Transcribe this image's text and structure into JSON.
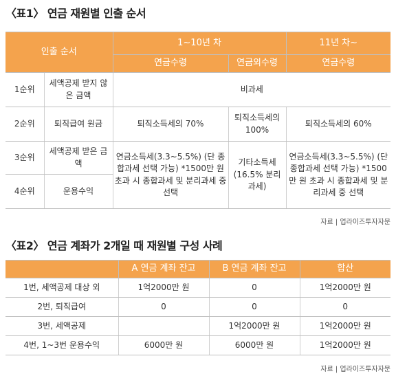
{
  "table1": {
    "title": "〈표1〉 연금 재원별 인출 순서",
    "header": {
      "order": "인출 순서",
      "period1": "1~10년 차",
      "period2": "11년 차~",
      "pension_receipt": "연금수령",
      "non_pension_receipt": "연금외수령",
      "pension_receipt2": "연금수령"
    },
    "rows": [
      {
        "rank": "1순위",
        "source": "세액공제 받지 않은 금액",
        "merged": "비과세"
      },
      {
        "rank": "2순위",
        "source": "퇴직급여 원금",
        "c1": "퇴직소득세의 70%",
        "c2": "퇴직소득세의 100%",
        "c3": "퇴직소득세의 60%"
      },
      {
        "rank": "3순위",
        "source": "세액공제 받은 금액",
        "c1": "연금소득세(3.3~5.5%) (단 종합과세 선택 가능) *1500만 원 초과 시 종합과세 및 분리과세 중 선택",
        "c2": "기타소득세 (16.5% 분리과세)",
        "c3": "연금소득세(3.3~5.5%) (단 종합과세 선택 가능) *1500만 원 초과 시 종합과세 및 분리과세 중 선택"
      },
      {
        "rank": "4순위",
        "source": "운용수익"
      }
    ],
    "source_note": "자료 | 업라이즈투자자문"
  },
  "table2": {
    "title": "〈표2〉 연금 계좌가 2개일 때 재원별 구성 사례",
    "header": [
      "",
      "A 연금 계좌 잔고",
      "B 연금 계좌 잔고",
      "합산"
    ],
    "rows": [
      [
        "1번, 세액공제 대상 외",
        "1억2000만 원",
        "0",
        "1억2000만 원"
      ],
      [
        "2번, 퇴직급여",
        "0",
        "0",
        "0"
      ],
      [
        "3번, 세액공제",
        "",
        "1억2000만 원",
        "1억2000만 원"
      ],
      [
        "4번, 1~3번 운용수익",
        "6000만 원",
        "6000만 원",
        "1억2000만 원"
      ]
    ],
    "source_note": "자료 | 업라이즈투자자문"
  },
  "colors": {
    "header_bg": "#f4a34d",
    "header_text": "#ffffff",
    "border": "#bfbfbf"
  }
}
